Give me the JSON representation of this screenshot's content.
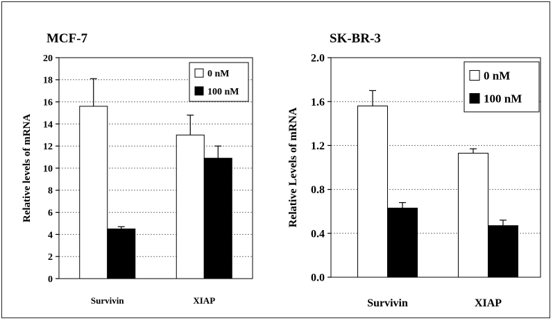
{
  "chart_data": [
    {
      "type": "bar",
      "title": "MCF-7",
      "ylabel": "Relative levels of mRNA",
      "xlabel": "",
      "categories": [
        "Survivin",
        "XIAP"
      ],
      "ylim": [
        0,
        20
      ],
      "yticks": [
        "0",
        "2",
        "4",
        "6",
        "8",
        "10",
        "12",
        "14",
        "16",
        "18",
        "20"
      ],
      "grid": true,
      "legend_position": "top-right",
      "series": [
        {
          "name": "0 nM",
          "color": "#ffffff",
          "values": [
            15.6,
            13.0
          ],
          "errors": [
            2.5,
            1.8
          ]
        },
        {
          "name": "100 nM",
          "color": "#000000",
          "values": [
            4.5,
            10.9
          ],
          "errors": [
            0.2,
            1.1
          ]
        }
      ]
    },
    {
      "type": "bar",
      "title": "SK-BR-3",
      "ylabel": "Relative  Levels of mRNA",
      "xlabel": "",
      "categories": [
        "Survivin",
        "XIAP"
      ],
      "ylim": [
        0,
        2.0
      ],
      "yticks": [
        "0.0",
        "0.4",
        "0.8",
        "1.2",
        "1.6",
        "2.0"
      ],
      "grid": true,
      "legend_position": "top-right",
      "series": [
        {
          "name": "0 nM",
          "color": "#ffffff",
          "values": [
            1.56,
            1.13
          ],
          "errors": [
            0.14,
            0.04
          ]
        },
        {
          "name": "100 nM",
          "color": "#000000",
          "values": [
            0.63,
            0.47
          ],
          "errors": [
            0.05,
            0.05
          ]
        }
      ]
    }
  ]
}
